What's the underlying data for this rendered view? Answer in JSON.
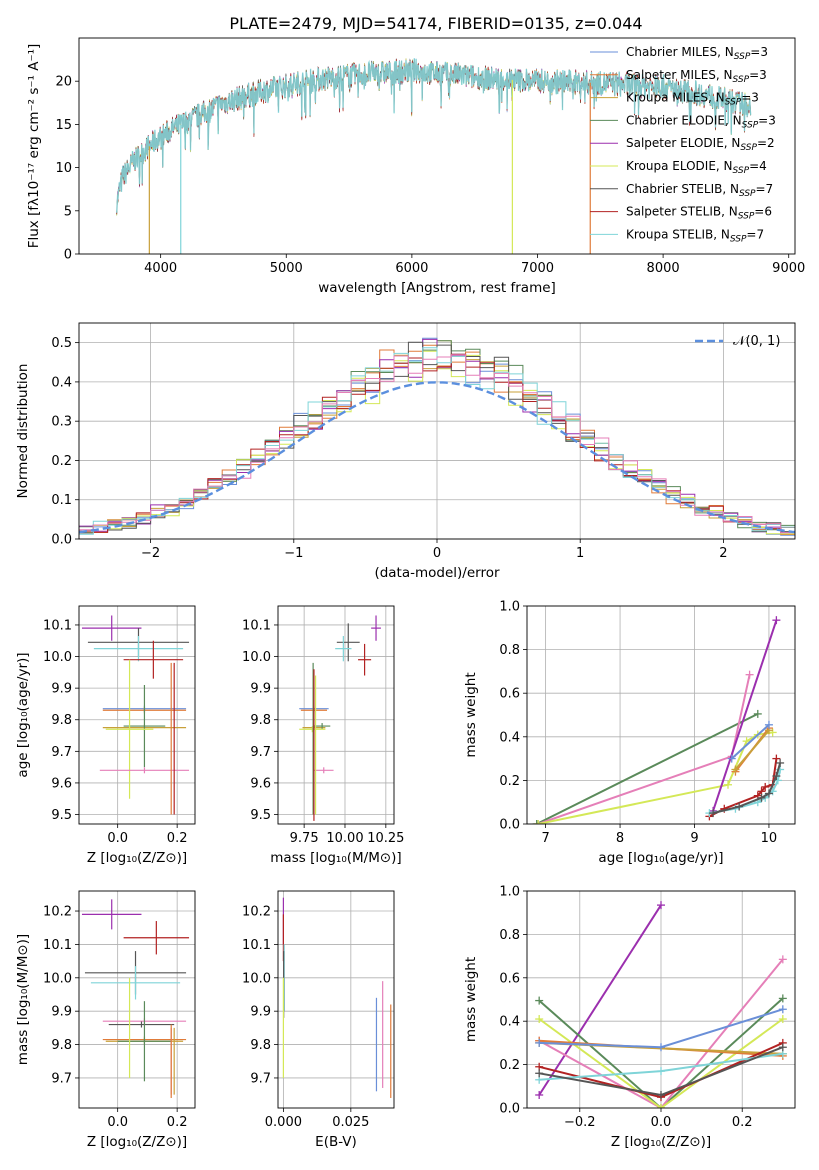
{
  "figure_title": "PLATE=2479, MJD=54174, FIBERID=0135, z=0.044",
  "colors": {
    "chabrier_miles": "#6a8fd8",
    "salpeter_miles": "#e07b39",
    "kroupa_miles": "#c8a03a",
    "chabrier_elodie": "#5a8a5a",
    "salpeter_elodie": "#9b2fae",
    "kroupa_elodie": "#d4e857",
    "chabrier_stelib": "#555555",
    "salpeter_stelib": "#b22222",
    "kroupa_stelib": "#7fd4d8",
    "kroupa_extra": "#e57fb8",
    "grid": "#b0b0b0",
    "normal_curve": "#5b8fde"
  },
  "chart_data": [
    {
      "id": "spectrum",
      "type": "line",
      "xlabel": "wavelength [Angstrom, rest frame]",
      "ylabel": "Flux [fλ10⁻¹⁷ erg cm⁻² s⁻¹ A⁻¹]",
      "xlim": [
        3350,
        9050
      ],
      "ylim": [
        0,
        25
      ],
      "xticks": [
        "4000",
        "5000",
        "6000",
        "7000",
        "8000",
        "9000"
      ],
      "yticks": [
        "0",
        "5",
        "10",
        "15",
        "20"
      ],
      "legend_position": "top-right",
      "legend": [
        {
          "name": "Chabrier MILES, N",
          "sub": "SSP",
          "eq": "=3",
          "color": "chabrier_miles"
        },
        {
          "name": "Salpeter MILES, N",
          "sub": "SSP",
          "eq": "=3",
          "color": "salpeter_miles"
        },
        {
          "name": "Kroupa MILES, N",
          "sub": "SSP",
          "eq": "=3",
          "color": "kroupa_miles"
        },
        {
          "name": "Chabrier ELODIE, N",
          "sub": "SSP",
          "eq": "=3",
          "color": "chabrier_elodie"
        },
        {
          "name": "Salpeter ELODIE, N",
          "sub": "SSP",
          "eq": "=2",
          "color": "salpeter_elodie"
        },
        {
          "name": "Kroupa ELODIE, N",
          "sub": "SSP",
          "eq": "=4",
          "color": "kroupa_elodie"
        },
        {
          "name": "Chabrier STELIB, N",
          "sub": "SSP",
          "eq": "=7",
          "color": "chabrier_stelib"
        },
        {
          "name": "Salpeter STELIB, N",
          "sub": "SSP",
          "eq": "=6",
          "color": "salpeter_stelib"
        },
        {
          "name": "Kroupa STELIB, N",
          "sub": "SSP",
          "eq": "=7",
          "color": "kroupa_stelib"
        }
      ],
      "continuum": [
        [
          3650,
          6
        ],
        [
          3700,
          9
        ],
        [
          3800,
          11
        ],
        [
          3950,
          13
        ],
        [
          4100,
          14.5
        ],
        [
          4300,
          16
        ],
        [
          4500,
          17.5
        ],
        [
          4800,
          18.8
        ],
        [
          5000,
          19.5
        ],
        [
          5300,
          20.3
        ],
        [
          5600,
          20.8
        ],
        [
          6000,
          21.2
        ],
        [
          6300,
          20.8
        ],
        [
          6600,
          20.3
        ],
        [
          7000,
          20.0
        ],
        [
          7500,
          19.8
        ],
        [
          8000,
          19.3
        ],
        [
          8300,
          18.5
        ],
        [
          8600,
          17.5
        ],
        [
          8700,
          17.2
        ]
      ],
      "noise_amplitude": 1.3,
      "features": [
        {
          "series": "kroupa_miles",
          "x": 3910,
          "y_low": 0
        },
        {
          "series": "kroupa_stelib",
          "x": 4160,
          "y_low": 0
        },
        {
          "series": "kroupa_elodie",
          "x": 6800,
          "y_low": 0
        },
        {
          "series": "salpeter_miles",
          "x": 7420,
          "y_low": 0
        }
      ]
    },
    {
      "id": "residuals",
      "type": "histogram",
      "xlabel": "(data-model)/error",
      "ylabel": "Normed distribution",
      "xlim": [
        -2.5,
        2.5
      ],
      "ylim": [
        0,
        0.55
      ],
      "xticks": [
        "−2",
        "−1",
        "0",
        "1",
        "2"
      ],
      "yticks": [
        "0.0",
        "0.1",
        "0.2",
        "0.3",
        "0.4",
        "0.5"
      ],
      "bin_width": 0.1,
      "legend_position": "top-right",
      "legend_label": "𝒩(0, 1)",
      "series_colors": [
        "chabrier_miles",
        "salpeter_miles",
        "kroupa_miles",
        "chabrier_elodie",
        "salpeter_elodie",
        "kroupa_elodie",
        "chabrier_stelib",
        "salpeter_stelib",
        "kroupa_stelib",
        "kroupa_extra"
      ]
    },
    {
      "id": "age_vs_Z",
      "type": "scatter",
      "xlabel": "Z [log₁₀(Z/Z⊙)]",
      "ylabel": "age  [log₁₀(age/yr)]",
      "xlim": [
        -0.13,
        0.26
      ],
      "ylim": [
        9.47,
        10.16
      ],
      "xticks": [
        "0.0",
        "0.2"
      ],
      "yticks": [
        "9.5",
        "9.6",
        "9.7",
        "9.8",
        "9.9",
        "10.0",
        "10.1"
      ],
      "points": [
        {
          "c": "salpeter_elodie",
          "x": -0.02,
          "xe": 0.1,
          "y": 10.09,
          "ye": 0.04
        },
        {
          "c": "chabrier_stelib",
          "x": 0.07,
          "xe": 0.17,
          "y": 10.045,
          "ye": 0.045
        },
        {
          "c": "kroupa_stelib",
          "x": 0.07,
          "xe": 0.15,
          "y": 10.025,
          "ye": 0.04
        },
        {
          "c": "salpeter_stelib",
          "x": 0.12,
          "xe": 0.1,
          "y": 9.99,
          "ye": 0.06
        },
        {
          "c": "chabrier_miles",
          "x": 0.09,
          "xe": 0.14,
          "y": 9.835,
          "ye": 0.0
        },
        {
          "c": "salpeter_miles",
          "x": 0.09,
          "xe": 0.14,
          "y": 9.83,
          "ye": 0.0
        },
        {
          "c": "kroupa_miles",
          "x": 0.09,
          "xe": 0.14,
          "y": 9.775,
          "ye": 0.0
        },
        {
          "c": "chabrier_elodie",
          "x": 0.09,
          "xe": 0.07,
          "y": 9.78,
          "ye": 0.13
        },
        {
          "c": "kroupa_elodie",
          "x": 0.04,
          "xe": 0.08,
          "y": 9.77,
          "ye": 0.22
        },
        {
          "c": "kroupa_extra",
          "x": 0.09,
          "xe": 0.15,
          "y": 9.64,
          "ye": 0.0
        },
        {
          "c": "salpeter_miles",
          "x": 0.18,
          "xe": 0.0,
          "y": 9.74,
          "ye": 0.24
        },
        {
          "c": "salpeter_stelib",
          "x": 0.19,
          "xe": 0.0,
          "y": 9.74,
          "ye": 0.24
        }
      ]
    },
    {
      "id": "age_vs_mass",
      "type": "scatter",
      "xlabel": "mass [log₁₀(M/M⊙)]",
      "ylabel": "",
      "xlim": [
        9.59,
        10.3
      ],
      "ylim": [
        9.47,
        10.16
      ],
      "xticks": [
        "9.75",
        "10.00",
        "10.25"
      ],
      "yticks": [
        "9.5",
        "9.6",
        "9.7",
        "9.8",
        "9.9",
        "10.0",
        "10.1"
      ],
      "points": [
        {
          "c": "salpeter_elodie",
          "x": 10.19,
          "xe": 0.03,
          "y": 10.09,
          "ye": 0.04
        },
        {
          "c": "chabrier_stelib",
          "x": 10.02,
          "xe": 0.07,
          "y": 10.045,
          "ye": 0.06
        },
        {
          "c": "kroupa_stelib",
          "x": 9.99,
          "xe": 0.05,
          "y": 10.025,
          "ye": 0.04
        },
        {
          "c": "salpeter_stelib",
          "x": 10.12,
          "xe": 0.04,
          "y": 9.99,
          "ye": 0.05
        },
        {
          "c": "chabrier_miles",
          "x": 9.81,
          "xe": 0.09,
          "y": 9.835,
          "ye": 0.0
        },
        {
          "c": "salpeter_miles",
          "x": 9.81,
          "xe": 0.08,
          "y": 9.83,
          "ye": 0.0
        },
        {
          "c": "kroupa_miles",
          "x": 9.81,
          "xe": 0.07,
          "y": 9.775,
          "ye": 0.0
        },
        {
          "c": "chabrier_elodie",
          "x": 9.86,
          "xe": 0.05,
          "y": 9.78,
          "ye": 0.0
        },
        {
          "c": "kroupa_elodie",
          "x": 9.8,
          "xe": 0.08,
          "y": 9.77,
          "ye": 0.0
        },
        {
          "c": "kroupa_extra",
          "x": 9.87,
          "xe": 0.06,
          "y": 9.64,
          "ye": 0.0
        },
        {
          "c": "chabrier_elodie",
          "x": 9.805,
          "xe": 0.0,
          "y": 9.74,
          "ye": 0.24
        },
        {
          "c": "salpeter_stelib",
          "x": 9.81,
          "xe": 0.0,
          "y": 9.72,
          "ye": 0.24
        },
        {
          "c": "kroupa_elodie",
          "x": 9.82,
          "xe": 0.0,
          "y": 9.72,
          "ye": 0.22
        }
      ]
    },
    {
      "id": "weight_vs_age",
      "type": "line",
      "xlabel": "age  [log₁₀(age/yr)]",
      "ylabel": "mass weight",
      "xlim": [
        6.75,
        10.35
      ],
      "ylim": [
        0,
        1
      ],
      "xticks": [
        "7",
        "8",
        "9",
        "10"
      ],
      "yticks": [
        "0.0",
        "0.2",
        "0.4",
        "0.6",
        "0.8",
        "1.0"
      ],
      "series": [
        {
          "c": "chabrier_elodie",
          "x": [
            6.88,
            9.85
          ],
          "y": [
            0.0,
            0.505
          ]
        },
        {
          "c": "kroupa_extra",
          "x": [
            6.9,
            9.5,
            9.74
          ],
          "y": [
            0.0,
            0.31,
            0.685
          ]
        },
        {
          "c": "kroupa_elodie",
          "x": [
            6.9,
            9.45,
            9.7,
            9.85,
            10.05
          ],
          "y": [
            0.0,
            0.18,
            0.38,
            0.41,
            0.42
          ]
        },
        {
          "c": "salpeter_elodie",
          "x": [
            9.25,
            10.1
          ],
          "y": [
            0.06,
            0.935
          ]
        },
        {
          "c": "salpeter_miles",
          "x": [
            9.55,
            10.0
          ],
          "y": [
            0.24,
            0.44
          ]
        },
        {
          "c": "kroupa_miles",
          "x": [
            9.55,
            10.0
          ],
          "y": [
            0.25,
            0.43
          ]
        },
        {
          "c": "chabrier_miles",
          "x": [
            9.5,
            10.0
          ],
          "y": [
            0.3,
            0.455
          ]
        },
        {
          "c": "salpeter_stelib",
          "x": [
            9.2,
            9.4,
            9.85,
            9.9,
            9.95,
            10.05,
            10.1
          ],
          "y": [
            0.035,
            0.07,
            0.13,
            0.15,
            0.17,
            0.18,
            0.3
          ]
        },
        {
          "c": "kroupa_stelib",
          "x": [
            9.2,
            9.55,
            9.85,
            9.95,
            10.05,
            10.12,
            10.15
          ],
          "y": [
            0.05,
            0.07,
            0.1,
            0.12,
            0.15,
            0.2,
            0.25
          ]
        },
        {
          "c": "chabrier_stelib",
          "x": [
            9.25,
            9.6,
            9.9,
            10.0,
            10.1,
            10.15
          ],
          "y": [
            0.05,
            0.08,
            0.12,
            0.14,
            0.22,
            0.28
          ]
        }
      ]
    },
    {
      "id": "mass_vs_Z",
      "type": "scatter",
      "xlabel": "Z [log₁₀(Z/Z⊙)]",
      "ylabel": "mass [log₁₀(M/M⊙)]",
      "xlim": [
        -0.13,
        0.26
      ],
      "ylim": [
        9.61,
        10.26
      ],
      "xticks": [
        "0.0",
        "0.2"
      ],
      "yticks": [
        "9.7",
        "9.8",
        "9.9",
        "10.0",
        "10.1",
        "10.2"
      ],
      "points": [
        {
          "c": "salpeter_elodie",
          "x": -0.02,
          "xe": 0.1,
          "y": 10.19,
          "ye": 0.045
        },
        {
          "c": "salpeter_stelib",
          "x": 0.13,
          "xe": 0.11,
          "y": 10.12,
          "ye": 0.05
        },
        {
          "c": "chabrier_stelib",
          "x": 0.06,
          "xe": 0.17,
          "y": 10.015,
          "ye": 0.065
        },
        {
          "c": "kroupa_stelib",
          "x": 0.06,
          "xe": 0.15,
          "y": 9.985,
          "ye": 0.05
        },
        {
          "c": "kroupa_extra",
          "x": 0.09,
          "xe": 0.14,
          "y": 9.87,
          "ye": 0.0
        },
        {
          "c": "chabrier_stelib",
          "x": 0.08,
          "xe": 0.11,
          "y": 9.86,
          "ye": 0.0
        },
        {
          "c": "salpeter_miles",
          "x": 0.09,
          "xe": 0.14,
          "y": 9.815,
          "ye": 0.0
        },
        {
          "c": "kroupa_miles",
          "x": 0.09,
          "xe": 0.13,
          "y": 9.81,
          "ye": 0.0
        },
        {
          "c": "chabrier_elodie",
          "x": 0.09,
          "xe": 0.09,
          "y": 9.81,
          "ye": 0.12
        },
        {
          "c": "kroupa_elodie",
          "x": 0.04,
          "xe": 0.0,
          "y": 9.85,
          "ye": 0.15
        },
        {
          "c": "kroupa_extra",
          "x": 0.18,
          "xe": 0.0,
          "y": 9.75,
          "ye": 0.1
        },
        {
          "c": "salpeter_miles",
          "x": 0.18,
          "xe": 0.0,
          "y": 9.75,
          "ye": 0.11
        },
        {
          "c": "kroupa_miles",
          "x": 0.19,
          "xe": 0.0,
          "y": 9.75,
          "ye": 0.1
        }
      ]
    },
    {
      "id": "mass_vs_ebv",
      "type": "scatter",
      "xlabel": "E(B-V)",
      "ylabel": "",
      "xlim": [
        -0.002,
        0.041
      ],
      "ylim": [
        9.61,
        10.26
      ],
      "xticks": [
        "0.000",
        "0.025"
      ],
      "yticks": [
        "9.7",
        "9.8",
        "9.9",
        "10.0",
        "10.1",
        "10.2"
      ],
      "points": [
        {
          "c": "salpeter_elodie",
          "x": 0.0,
          "xe": 0.0,
          "y": 10.17,
          "ye": 0.07
        },
        {
          "c": "salpeter_stelib",
          "x": 0.0,
          "xe": 0.0,
          "y": 10.12,
          "ye": 0.07
        },
        {
          "c": "kroupa_stelib",
          "x": 0.0003,
          "xe": 0.0,
          "y": 10.0,
          "ye": 0.1
        },
        {
          "c": "chabrier_stelib",
          "x": 0.0001,
          "xe": 0.0,
          "y": 9.98,
          "ye": 0.1
        },
        {
          "c": "kroupa_elodie",
          "x": 0.0,
          "xe": 0.0,
          "y": 9.85,
          "ye": 0.15
        },
        {
          "c": "chabrier_miles",
          "x": 0.0345,
          "xe": 0.0,
          "y": 9.8,
          "ye": 0.14
        },
        {
          "c": "kroupa_extra",
          "x": 0.0368,
          "xe": 0.0,
          "y": 9.83,
          "ye": 0.16
        },
        {
          "c": "salpeter_miles",
          "x": 0.0398,
          "xe": 0.0,
          "y": 9.78,
          "ye": 0.14
        }
      ]
    },
    {
      "id": "weight_vs_Z",
      "type": "line",
      "xlabel": "Z [log₁₀(Z/Z⊙)]",
      "ylabel": "mass weight",
      "xlim": [
        -0.33,
        0.33
      ],
      "ylim": [
        0,
        1
      ],
      "xticks": [
        "−0.2",
        "0.0",
        "0.2"
      ],
      "yticks": [
        "0.0",
        "0.2",
        "0.4",
        "0.6",
        "0.8",
        "1.0"
      ],
      "series": [
        {
          "c": "salpeter_elodie",
          "x": [
            -0.3,
            0.0
          ],
          "y": [
            0.06,
            0.935
          ]
        },
        {
          "c": "chabrier_elodie",
          "x": [
            -0.3,
            0.0,
            0.3
          ],
          "y": [
            0.495,
            0.0,
            0.505
          ]
        },
        {
          "c": "kroupa_extra",
          "x": [
            -0.3,
            0.0,
            0.3
          ],
          "y": [
            0.31,
            0.0,
            0.685
          ]
        },
        {
          "c": "kroupa_elodie",
          "x": [
            -0.3,
            0.0,
            0.3
          ],
          "y": [
            0.41,
            0.0,
            0.41
          ]
        },
        {
          "c": "salpeter_miles",
          "x": [
            -0.3,
            0.3
          ],
          "y": [
            0.31,
            0.24
          ]
        },
        {
          "c": "kroupa_miles",
          "x": [
            -0.3,
            0.3
          ],
          "y": [
            0.3,
            0.25
          ]
        },
        {
          "c": "chabrier_miles",
          "x": [
            -0.3,
            0.0,
            0.3
          ],
          "y": [
            0.3,
            0.28,
            0.455
          ]
        },
        {
          "c": "salpeter_stelib",
          "x": [
            -0.3,
            0.0,
            0.3
          ],
          "y": [
            0.19,
            0.05,
            0.3
          ]
        },
        {
          "c": "kroupa_stelib",
          "x": [
            -0.3,
            0.0,
            0.3
          ],
          "y": [
            0.13,
            0.17,
            0.25
          ]
        },
        {
          "c": "chabrier_stelib",
          "x": [
            -0.3,
            0.0,
            0.3
          ],
          "y": [
            0.16,
            0.06,
            0.28
          ]
        }
      ]
    }
  ]
}
